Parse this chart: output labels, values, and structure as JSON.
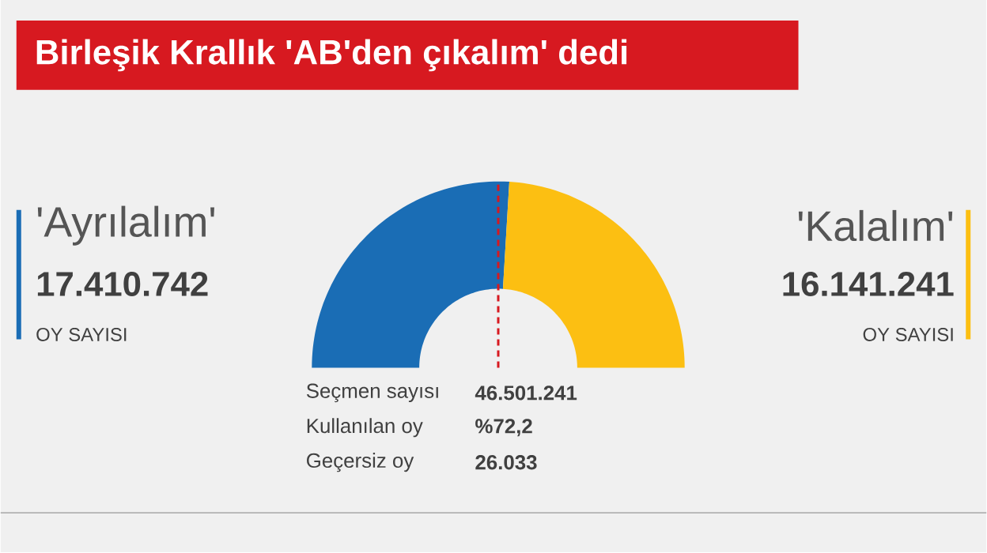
{
  "chart_data": {
    "type": "donut",
    "title": "Birleşik Krallık 'AB'den çıkalım' dedi",
    "categories": [
      "'Ayrılalım'",
      "'Kalalım'"
    ],
    "values": [
      17410742,
      16141241
    ],
    "value_labels": [
      "17.410.742",
      "16.141.241"
    ],
    "colors": [
      "#1a6db5",
      "#fcbf12"
    ],
    "needle": "'Ayrılalım'",
    "annotations": [
      "OY SAYISI",
      "OY SAYISI",
      "Seçmen sayısı",
      "46.501.241",
      "Kullanılan oy",
      "%72,2",
      "Geçersiz oy",
      "26.033"
    ]
  }
}
